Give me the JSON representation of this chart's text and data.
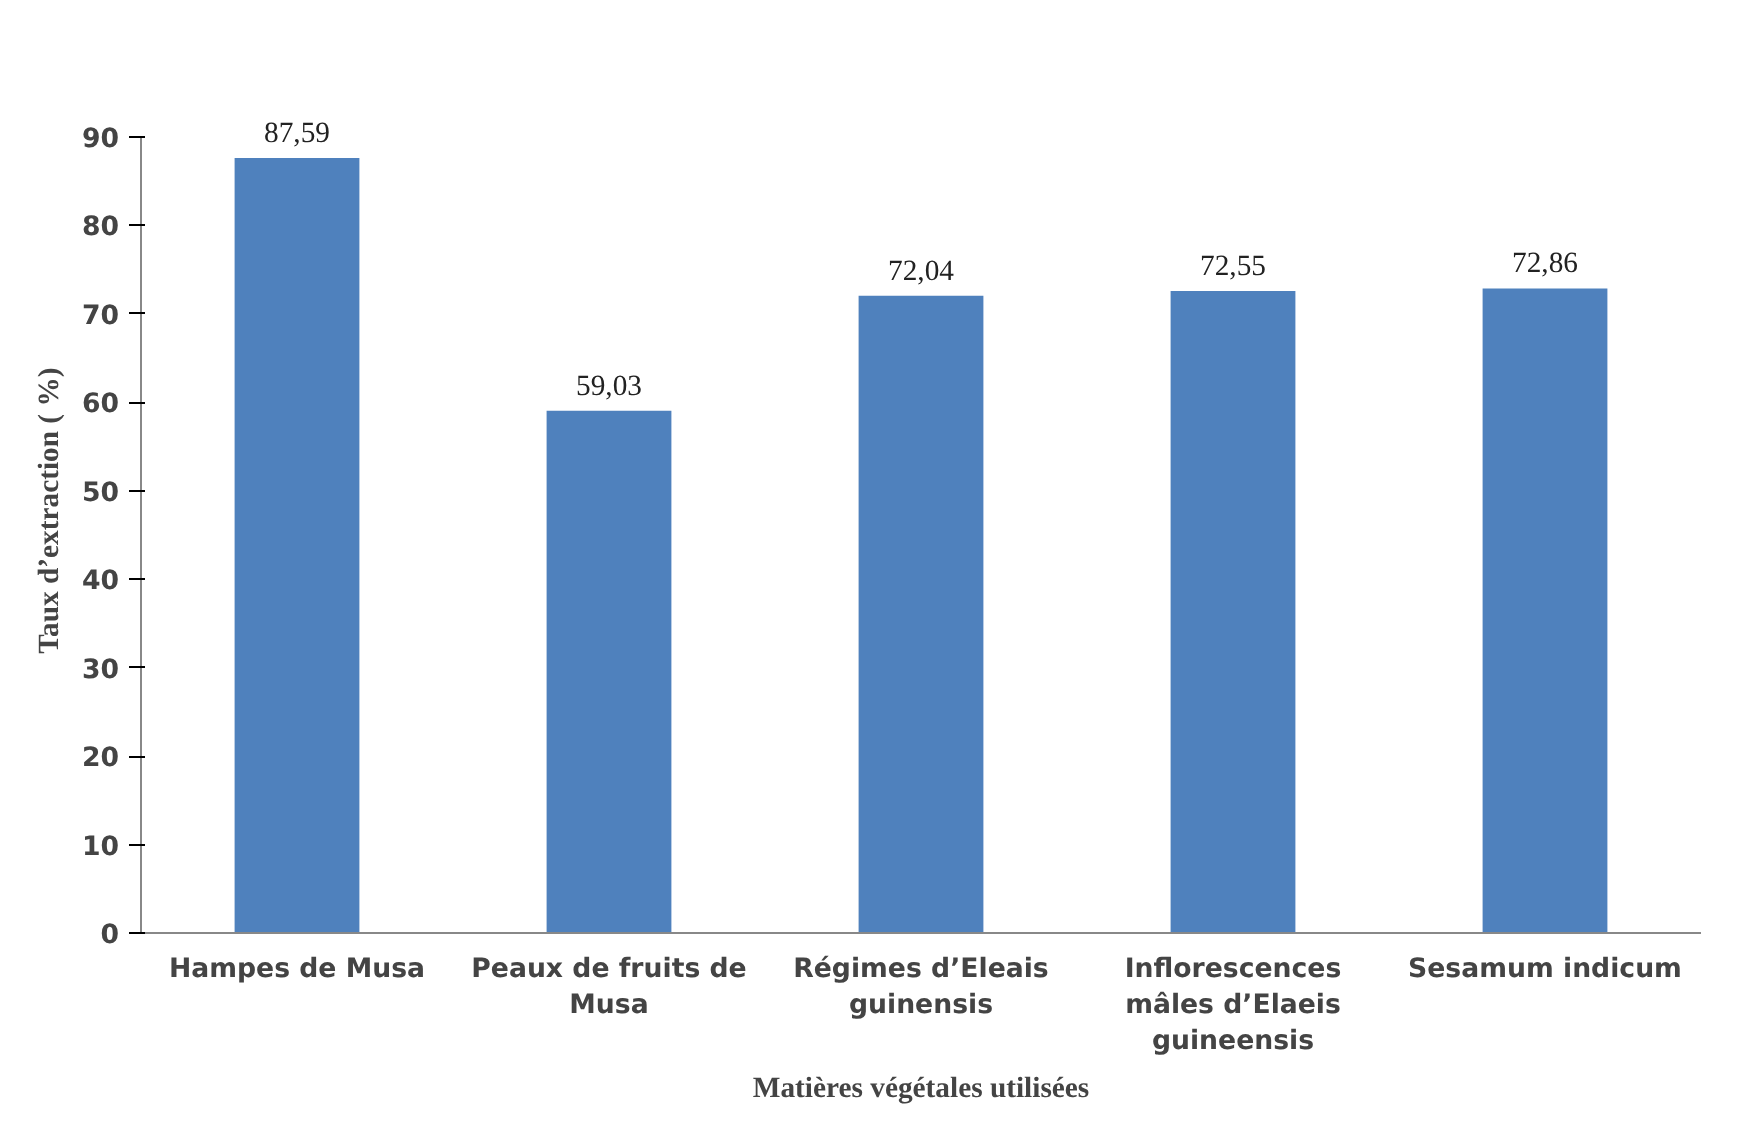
{
  "chart_data": {
    "type": "bar",
    "categories": [
      "Hampes de Musa",
      "Peaux de fruits de Musa",
      "Régimes d’Eleais guinensis",
      "Inflorescences mâles d’Elaeis guineensis",
      "Sesamum indicum"
    ],
    "values": [
      87.59,
      59.03,
      72.04,
      72.55,
      72.86
    ],
    "value_labels": [
      "87,59",
      "59,03",
      "72,04",
      "72,55",
      "72,86"
    ],
    "color": "#4f81bd",
    "xlabel": "Matières végétales utilisées",
    "ylabel": "Taux d’extraction  ( %)",
    "ylim": [
      0,
      90
    ],
    "yticks": [
      0,
      10,
      20,
      30,
      40,
      50,
      60,
      70,
      80,
      90
    ],
    "grid": false
  }
}
